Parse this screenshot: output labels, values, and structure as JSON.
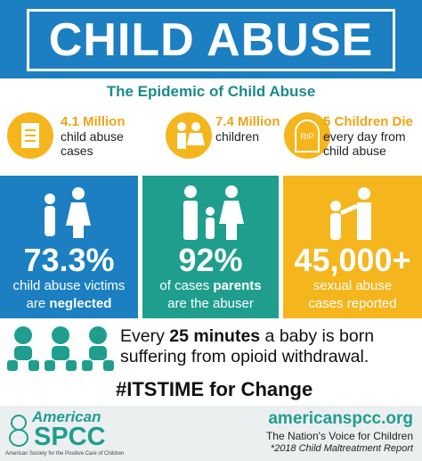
{
  "header": {
    "title": "CHILD ABUSE",
    "subtitle": "The Epidemic of Child Abuse"
  },
  "stats": [
    {
      "value": "4.1 Million",
      "lines": [
        "child abuse",
        "cases"
      ]
    },
    {
      "value": "7.4 Million",
      "lines": [
        "children"
      ]
    },
    {
      "value": "5 Children Die",
      "icon_text": "RIP",
      "lines": [
        "every day from",
        "child abuse"
      ]
    }
  ],
  "panels": [
    {
      "value": "73.3%",
      "lines": [
        [
          {
            "text": "child abuse victims",
            "bold": false
          }
        ],
        [
          {
            "text": "are ",
            "bold": false
          },
          {
            "text": "neglected",
            "bold": true
          }
        ]
      ]
    },
    {
      "value": "92%",
      "lines": [
        [
          {
            "text": "of cases ",
            "bold": false
          },
          {
            "text": "parents",
            "bold": true
          }
        ],
        [
          {
            "text": "are the abuser",
            "bold": false
          }
        ]
      ]
    },
    {
      "value": "45,000+",
      "lines": [
        [
          {
            "text": "sexual abuse",
            "bold": false
          }
        ],
        [
          {
            "text": "cases reported",
            "bold": false
          }
        ]
      ]
    }
  ],
  "banner": {
    "lines": [
      [
        {
          "text": "Every ",
          "bold": false
        },
        {
          "text": "25 minutes",
          "bold": true
        },
        {
          "text": " a baby is born",
          "bold": false
        }
      ],
      [
        {
          "text": "suffering from opioid withdrawal.",
          "bold": false
        }
      ]
    ],
    "hashtag": "#ITSTIME for Change"
  },
  "footer": {
    "logo_top": "American",
    "logo_main": "SPCC",
    "logo_caption": "American Society for the Positive Care of Children",
    "url": "americanspcc.org",
    "tagline": "The Nation's Voice for Children",
    "source": "*2018 Child Maltreatment Report"
  }
}
